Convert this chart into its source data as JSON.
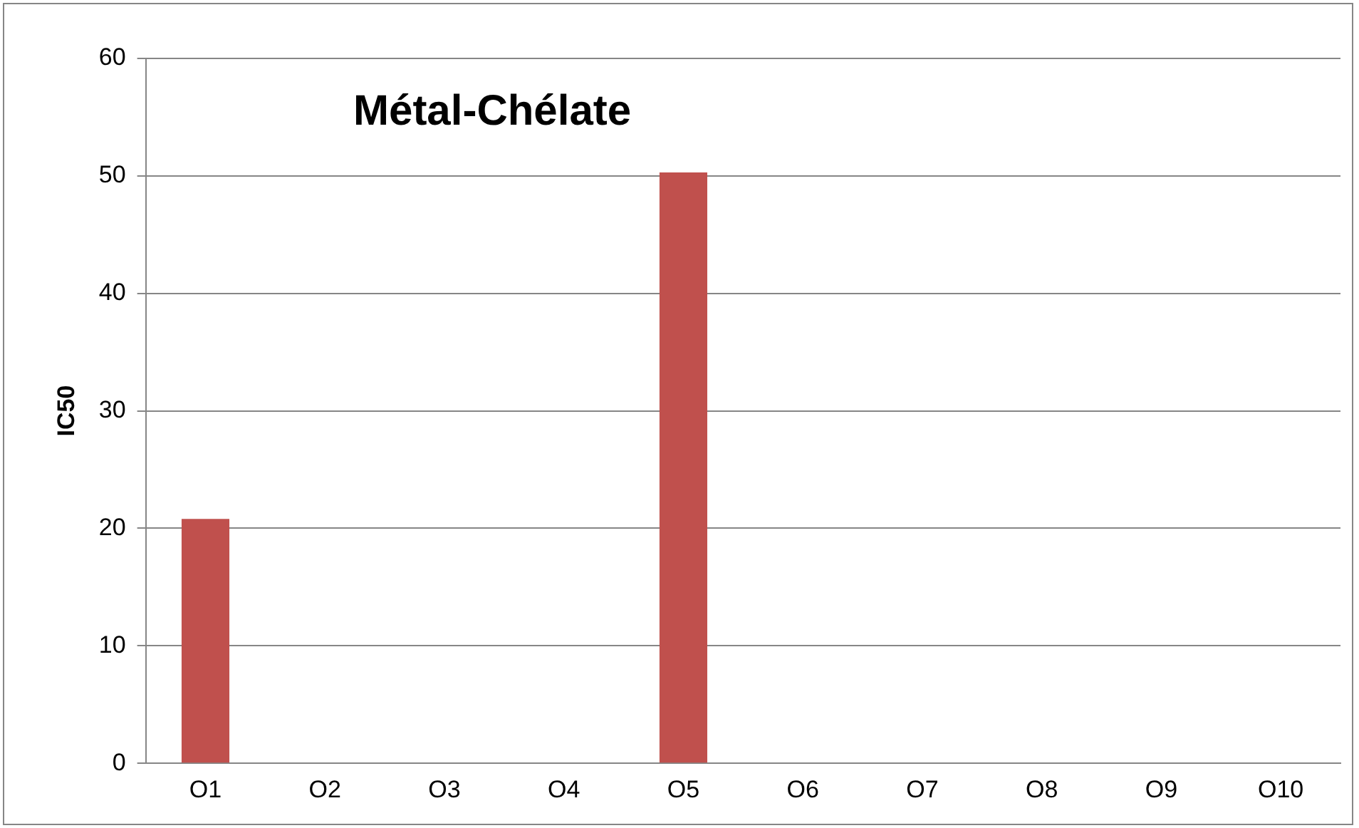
{
  "chart_data": {
    "type": "bar",
    "title": "Métal-Chélate",
    "ylabel": "IC50",
    "categories": [
      "O1",
      "O2",
      "O3",
      "O4",
      "O5",
      "O6",
      "O7",
      "O8",
      "O9",
      "O10"
    ],
    "values": [
      20.8,
      0,
      0,
      0,
      50.3,
      0,
      0,
      0,
      0,
      0
    ],
    "color": "#c0504d",
    "ylim": [
      0,
      60
    ],
    "yticks": [
      0,
      10,
      20,
      30,
      40,
      50,
      60
    ],
    "grid": "y",
    "legend": false
  }
}
